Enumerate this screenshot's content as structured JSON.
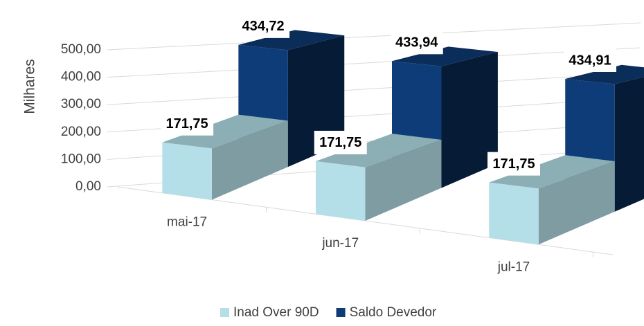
{
  "chart_data": {
    "type": "bar3d",
    "y_label": "Milhares",
    "categories": [
      "mai-17",
      "jun-17",
      "jul-17"
    ],
    "series": [
      {
        "name": "Inad Over 90D",
        "color": "#b4dfe8",
        "values": [
          171.75,
          171.75,
          171.75
        ],
        "value_labels": [
          "171,75",
          "171,75",
          "171,75"
        ]
      },
      {
        "name": "Saldo Devedor",
        "color": "#0e3c78",
        "values": [
          434.72,
          433.94,
          434.91
        ],
        "value_labels": [
          "434,72",
          "433,94",
          "434,91"
        ]
      }
    ],
    "ylim": [
      0,
      500
    ],
    "yticks": [
      {
        "value": 0,
        "label": "0,00"
      },
      {
        "value": 100,
        "label": "100,00"
      },
      {
        "value": 200,
        "label": "200,00"
      },
      {
        "value": 300,
        "label": "300,00"
      },
      {
        "value": 400,
        "label": "400,00"
      },
      {
        "value": 500,
        "label": "500,00"
      }
    ],
    "grid": true,
    "legend": "bottom"
  }
}
